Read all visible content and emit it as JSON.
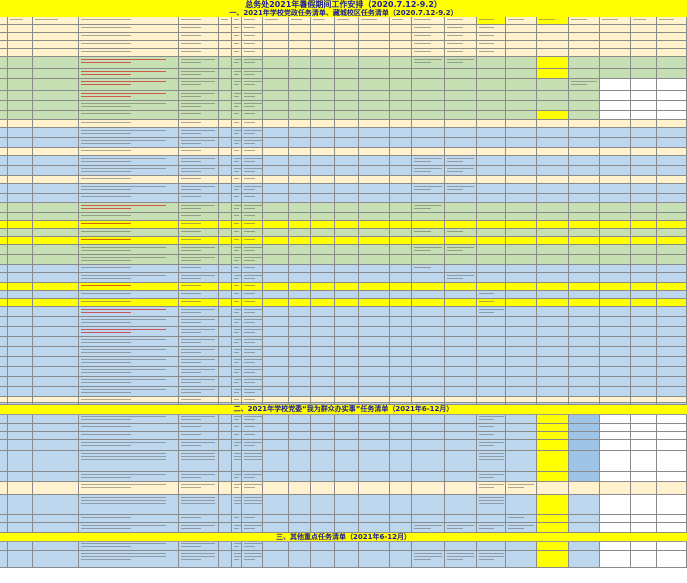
{
  "title": "总务处2021年暑假期间工作安排（2020.7.12-9.2）",
  "sections": [
    {
      "title": "一、2021年学校党政任务清单、藏城校区任务清单（2020.7.12-9.2）"
    },
    {
      "title": "二、2021年学校党委“我为群众办实事”任务清单（2021年6-12月）"
    },
    {
      "title": "三、其他重点任务清单（2021年6-12月）"
    }
  ],
  "colors": {
    "title_band": "#ffff00",
    "green_rows": "#c6e0b4",
    "blue_rows": "#bdd7ee",
    "cream_rows": "#fff2cc",
    "highlight": "#ffff00"
  }
}
